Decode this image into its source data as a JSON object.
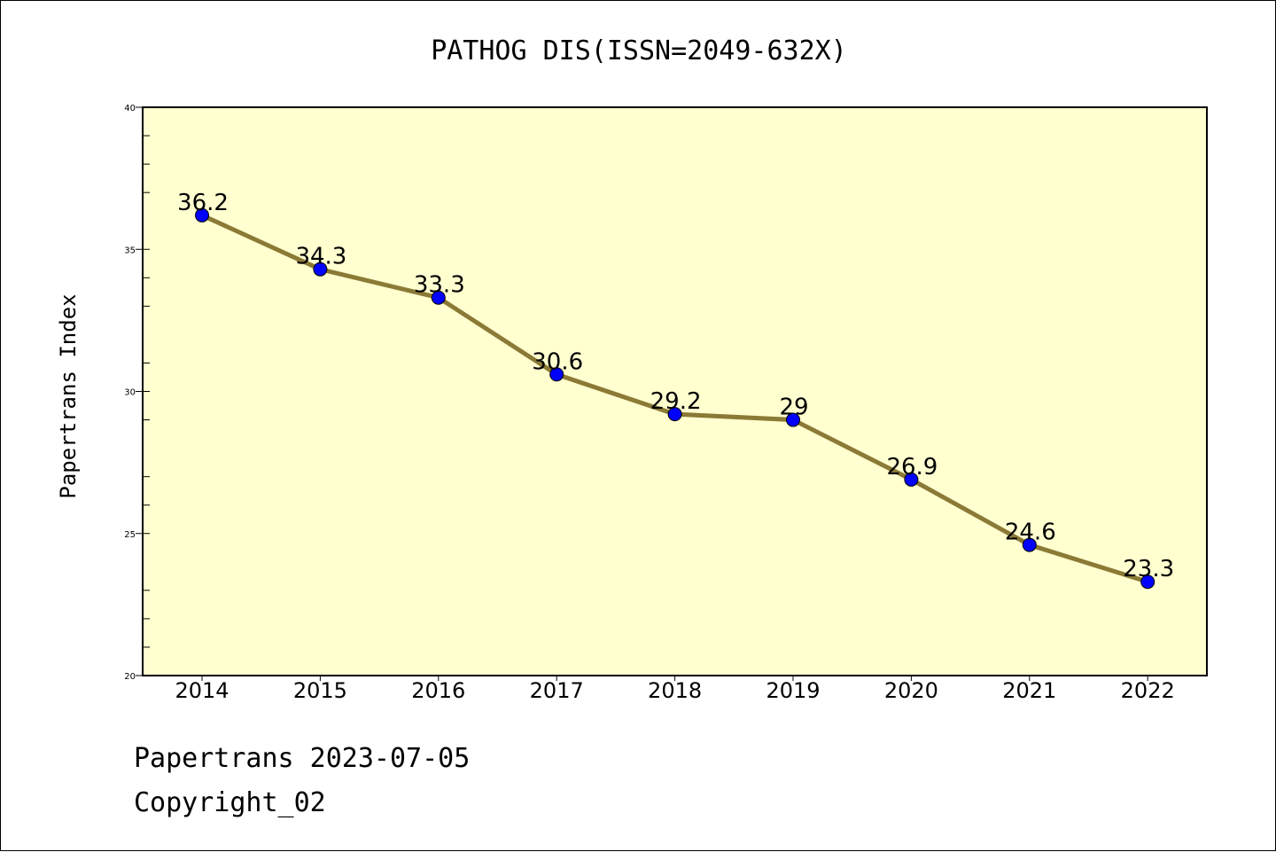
{
  "chart_data": {
    "type": "line",
    "title": "PATHOG DIS(ISSN=2049-632X)",
    "ylabel": "Papertrans Index",
    "xlabel": "",
    "categories": [
      "2014",
      "2015",
      "2016",
      "2017",
      "2018",
      "2019",
      "2020",
      "2021",
      "2022"
    ],
    "series": [
      {
        "values": [
          36.2,
          34.3,
          33.3,
          30.6,
          29.2,
          29,
          26.9,
          24.6,
          23.3
        ],
        "labels": [
          "36.2",
          "34.3",
          "33.3",
          "30.6",
          "29.2",
          "29",
          "26.9",
          "24.6",
          "23.3"
        ]
      }
    ],
    "ylim": [
      20,
      40
    ],
    "yticks": [
      20,
      25,
      30,
      35,
      40
    ],
    "grid": false,
    "colors": {
      "plot_background": "#ffffd0",
      "line": "#8b7a35",
      "marker": "#0000ff"
    }
  },
  "footer": {
    "line1": "Papertrans 2023-07-05",
    "line2": "Copyright_02"
  }
}
